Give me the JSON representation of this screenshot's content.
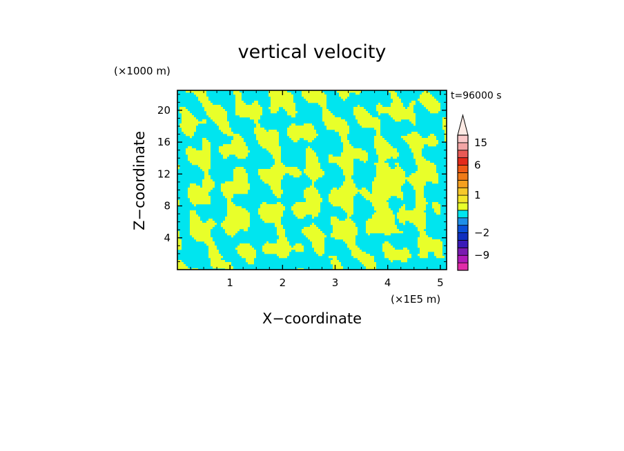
{
  "chart_data": {
    "type": "heatmap",
    "title": "vertical velocity",
    "xlabel": "X−coordinate",
    "ylabel": "Z−coordinate",
    "x_unit": "(×1E5 m)",
    "y_unit": "(×1000 m)",
    "time_label": "t=96000 s",
    "xlim": [
      0,
      5.12
    ],
    "ylim": [
      0,
      22.5
    ],
    "x_ticks": [
      "1",
      "2",
      "3",
      "4",
      "5"
    ],
    "y_ticks": [
      "4",
      "8",
      "12",
      "16",
      "20"
    ],
    "colorbar": {
      "labels": [
        "15",
        "6",
        "1",
        "−2",
        "−9"
      ],
      "levels": [
        -15,
        -12,
        -9,
        -6,
        -4,
        -2,
        -1,
        -0.5,
        0,
        0.5,
        1,
        1.5,
        2,
        4,
        6,
        9,
        12,
        15,
        20
      ],
      "colors": [
        "#e02ca8",
        "#b01ab8",
        "#7a1ab0",
        "#3a1ab8",
        "#1030c0",
        "#0a50d8",
        "#1e8fe8",
        "#00e5ef",
        "#e8ff2a",
        "#f5e62a",
        "#f7c82a",
        "#f5a020",
        "#ef7a18",
        "#ef5a16",
        "#e32a1a",
        "#e85a56",
        "#f3a5a5",
        "#fbc8c8"
      ],
      "arrow_color": "#fdeae4"
    },
    "field_colors": {
      "downward": "#00e5ef",
      "upward": "#e8ff2a"
    },
    "note_field": "two-tone field of small vertical velocity: cyan = slightly negative, yellow = slightly positive"
  }
}
